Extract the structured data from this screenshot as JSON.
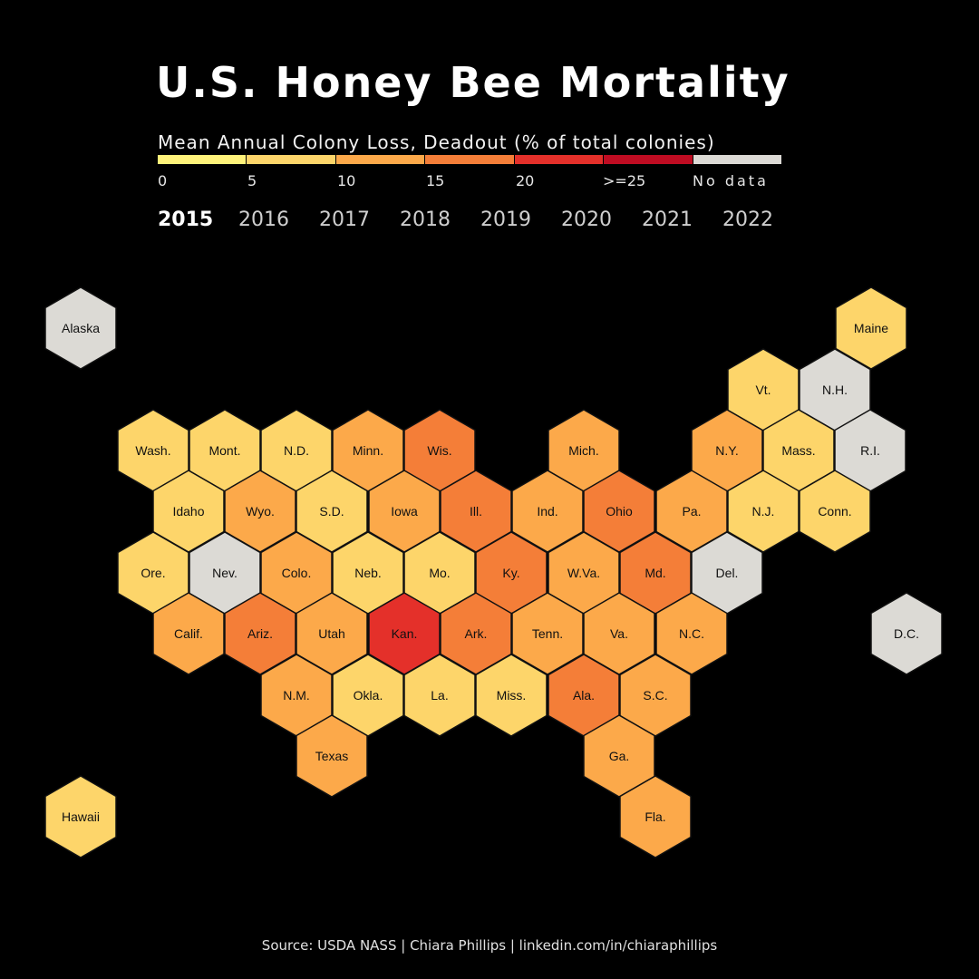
{
  "title": "U.S. Honey Bee Mortality",
  "legend": {
    "title": "Mean Annual Colony Loss, Deadout (% of total colonies)",
    "bins": [
      {
        "label": "0",
        "color": "#fff27a"
      },
      {
        "label": "5",
        "color": "#fdd56a"
      },
      {
        "label": "10",
        "color": "#fca94a"
      },
      {
        "label": "15",
        "color": "#f47e38"
      },
      {
        "label": "20",
        "color": "#e4302a"
      },
      {
        "label": ">=25",
        "color": "#bf0c22"
      },
      {
        "label": "No data",
        "color": "#dcdad5"
      }
    ]
  },
  "years": [
    "2015",
    "2016",
    "2017",
    "2018",
    "2019",
    "2020",
    "2021",
    "2022"
  ],
  "selected_year": "2015",
  "source": "Source: USDA NASS | Chiara Phillips | linkedin.com/in/chiaraphillips",
  "chart_data": {
    "type": "hex-tile-map",
    "title": "U.S. Honey Bee Mortality",
    "year": "2015",
    "value_bins": [
      "0",
      "5",
      "10",
      "15",
      "20",
      ">=25",
      "No data"
    ],
    "states": [
      {
        "abbr": "Alaska",
        "bin": "No data"
      },
      {
        "abbr": "Maine",
        "bin": "5"
      },
      {
        "abbr": "Vt.",
        "bin": "5"
      },
      {
        "abbr": "N.H.",
        "bin": "No data"
      },
      {
        "abbr": "Wash.",
        "bin": "5"
      },
      {
        "abbr": "Mont.",
        "bin": "5"
      },
      {
        "abbr": "N.D.",
        "bin": "5"
      },
      {
        "abbr": "Minn.",
        "bin": "10"
      },
      {
        "abbr": "Wis.",
        "bin": "15"
      },
      {
        "abbr": "Mich.",
        "bin": "10"
      },
      {
        "abbr": "N.Y.",
        "bin": "10"
      },
      {
        "abbr": "Mass.",
        "bin": "5"
      },
      {
        "abbr": "R.I.",
        "bin": "No data"
      },
      {
        "abbr": "Idaho",
        "bin": "5"
      },
      {
        "abbr": "Wyo.",
        "bin": "10"
      },
      {
        "abbr": "S.D.",
        "bin": "5"
      },
      {
        "abbr": "Iowa",
        "bin": "10"
      },
      {
        "abbr": "Ill.",
        "bin": "15"
      },
      {
        "abbr": "Ind.",
        "bin": "10"
      },
      {
        "abbr": "Ohio",
        "bin": "15"
      },
      {
        "abbr": "Pa.",
        "bin": "10"
      },
      {
        "abbr": "N.J.",
        "bin": "5"
      },
      {
        "abbr": "Conn.",
        "bin": "5"
      },
      {
        "abbr": "Ore.",
        "bin": "5"
      },
      {
        "abbr": "Nev.",
        "bin": "No data"
      },
      {
        "abbr": "Colo.",
        "bin": "10"
      },
      {
        "abbr": "Neb.",
        "bin": "5"
      },
      {
        "abbr": "Mo.",
        "bin": "5"
      },
      {
        "abbr": "Ky.",
        "bin": "15"
      },
      {
        "abbr": "W.Va.",
        "bin": "10"
      },
      {
        "abbr": "Md.",
        "bin": "15"
      },
      {
        "abbr": "Del.",
        "bin": "No data"
      },
      {
        "abbr": "Calif.",
        "bin": "10"
      },
      {
        "abbr": "Ariz.",
        "bin": "15"
      },
      {
        "abbr": "Utah",
        "bin": "10"
      },
      {
        "abbr": "Kan.",
        "bin": "20"
      },
      {
        "abbr": "Ark.",
        "bin": "15"
      },
      {
        "abbr": "Tenn.",
        "bin": "10"
      },
      {
        "abbr": "Va.",
        "bin": "10"
      },
      {
        "abbr": "N.C.",
        "bin": "10"
      },
      {
        "abbr": "D.C.",
        "bin": "No data"
      },
      {
        "abbr": "N.M.",
        "bin": "10"
      },
      {
        "abbr": "Okla.",
        "bin": "5"
      },
      {
        "abbr": "La.",
        "bin": "5"
      },
      {
        "abbr": "Miss.",
        "bin": "5"
      },
      {
        "abbr": "Ala.",
        "bin": "15"
      },
      {
        "abbr": "S.C.",
        "bin": "10"
      },
      {
        "abbr": "Texas",
        "bin": "10"
      },
      {
        "abbr": "Ga.",
        "bin": "10"
      },
      {
        "abbr": "Fla.",
        "bin": "10"
      },
      {
        "abbr": "Hawaii",
        "bin": "5"
      }
    ]
  }
}
